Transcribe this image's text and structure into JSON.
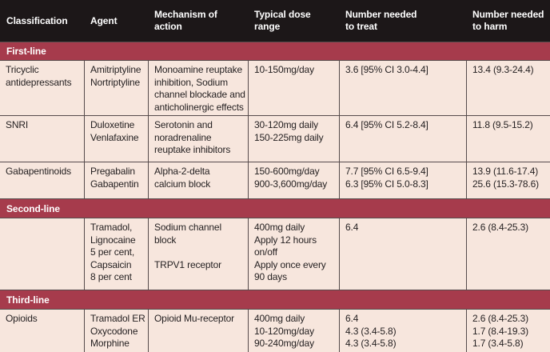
{
  "colors": {
    "header_bg": "#1c1718",
    "section_band_bg": "#a63b4c",
    "body_bg": "#f7e6dd",
    "border": "#564b4c",
    "header_text": "#ffffff",
    "body_text": "#231f20"
  },
  "table": {
    "headers": [
      "Classification",
      "Agent",
      "Mechanism of action",
      "Typical dose range",
      "Number needed\nto treat",
      "Number needed\nto harm"
    ],
    "bands": [
      "First-line",
      "Second-line",
      "Third-line"
    ],
    "rows": [
      {
        "classification": "Tricyclic\nantidepressants",
        "agent": "Amitriptyline\nNortriptyline",
        "mechanism": "Monoamine reuptake\ninhibition, Sodium\nchannel blockade and\nanticholinergic effects",
        "dose": "10-150mg/day",
        "nnt": "3.6 [95% CI 3.0-4.4]",
        "nnh": "13.4 (9.3-24.4)"
      },
      {
        "classification": "SNRI",
        "agent": "Duloxetine\nVenlafaxine",
        "mechanism": "Serotonin and\nnoradrenaline\nreuptake inhibitors",
        "dose": "30-120mg daily\n150-225mg daily",
        "nnt": "6.4 [95% CI 5.2-8.4]",
        "nnh": "11.8 (9.5-15.2)"
      },
      {
        "classification": "Gabapentinoids",
        "agent": "Pregabalin\nGabapentin",
        "mechanism": "Alpha-2-delta\ncalcium block",
        "dose": "150-600mg/day\n900-3,600mg/day",
        "nnt": "7.7 [95% CI 6.5-9.4]\n6.3 [95% CI 5.0-8.3]",
        "nnh": "13.9 (11.6-17.4)\n25.6 (15.3-78.6)"
      },
      {
        "classification": "",
        "agent": "Tramadol,\nLignocaine\n5 per cent,\nCapsaicin\n8 per cent",
        "mechanism": "Sodium channel block\n\nTRPV1 receptor",
        "dose": "400mg daily\nApply 12 hours\non/off\nApply once every\n90 days",
        "nnt": "6.4",
        "nnh": "2.6 (8.4-25.3)"
      },
      {
        "classification": "Opioids",
        "agent": "Tramadol ER\nOxycodone\nMorphine",
        "mechanism": "Opioid Mu-receptor",
        "dose": "400mg daily\n10-120mg/day\n90-240mg/day",
        "nnt": "6.4\n4.3 (3.4-5.8)\n4.3 (3.4-5.8)",
        "nnh": "2.6 (8.4-25.3)\n1.7 (8.4-19.3)\n1.7 (3.4-5.8)"
      }
    ]
  }
}
